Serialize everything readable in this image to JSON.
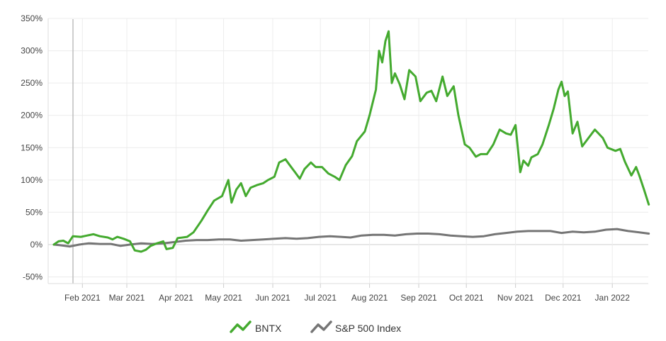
{
  "chart_data": {
    "type": "line",
    "title": "",
    "xlabel": "",
    "ylabel": "",
    "ylim": [
      -50,
      350
    ],
    "y_ticks": [
      {
        "value": -50,
        "label": "-50%"
      },
      {
        "value": 0,
        "label": "0%"
      },
      {
        "value": 50,
        "label": "50%"
      },
      {
        "value": 100,
        "label": "100%"
      },
      {
        "value": 150,
        "label": "150%"
      },
      {
        "value": 200,
        "label": "200%"
      },
      {
        "value": 250,
        "label": "250%"
      },
      {
        "value": 300,
        "label": "300%"
      },
      {
        "value": 350,
        "label": "350%"
      }
    ],
    "x_range": [
      "2021-01-14",
      "2022-01-21"
    ],
    "x_ticks": [
      {
        "date": "2021-02-01",
        "label": "Feb 2021"
      },
      {
        "date": "2021-03-01",
        "label": "Mar 2021"
      },
      {
        "date": "2021-04-01",
        "label": "Apr 2021"
      },
      {
        "date": "2021-05-01",
        "label": "May 2021"
      },
      {
        "date": "2021-06-01",
        "label": "Jun 2021"
      },
      {
        "date": "2021-07-01",
        "label": "Jul 2021"
      },
      {
        "date": "2021-08-01",
        "label": "Aug 2021"
      },
      {
        "date": "2021-09-01",
        "label": "Sep 2021"
      },
      {
        "date": "2021-10-01",
        "label": "Oct 2021"
      },
      {
        "date": "2021-11-01",
        "label": "Nov 2021"
      },
      {
        "date": "2021-12-01",
        "label": "Dec 2021"
      },
      {
        "date": "2022-01-01",
        "label": "Jan 2022"
      }
    ],
    "grid": true,
    "legend_position": "bottom-center",
    "series": [
      {
        "name": "BNTX",
        "color": "#44aa2f",
        "points": [
          [
            "2021-01-14",
            0
          ],
          [
            "2021-01-17",
            5
          ],
          [
            "2021-01-20",
            6
          ],
          [
            "2021-01-23",
            2
          ],
          [
            "2021-01-26",
            13
          ],
          [
            "2021-01-31",
            12
          ],
          [
            "2021-02-04",
            14
          ],
          [
            "2021-02-08",
            16
          ],
          [
            "2021-02-12",
            13
          ],
          [
            "2021-02-17",
            11
          ],
          [
            "2021-02-20",
            8
          ],
          [
            "2021-02-23",
            12
          ],
          [
            "2021-02-27",
            9
          ],
          [
            "2021-03-03",
            5
          ],
          [
            "2021-03-06",
            -9
          ],
          [
            "2021-03-10",
            -11
          ],
          [
            "2021-03-13",
            -8
          ],
          [
            "2021-03-16",
            -2
          ],
          [
            "2021-03-20",
            2
          ],
          [
            "2021-03-24",
            5
          ],
          [
            "2021-03-26",
            -7
          ],
          [
            "2021-03-30",
            -5
          ],
          [
            "2021-04-02",
            10
          ],
          [
            "2021-04-08",
            12
          ],
          [
            "2021-04-12",
            19
          ],
          [
            "2021-04-17",
            37
          ],
          [
            "2021-04-21",
            53
          ],
          [
            "2021-04-25",
            68
          ],
          [
            "2021-04-30",
            75
          ],
          [
            "2021-05-04",
            100
          ],
          [
            "2021-05-06",
            65
          ],
          [
            "2021-05-09",
            85
          ],
          [
            "2021-05-12",
            95
          ],
          [
            "2021-05-15",
            75
          ],
          [
            "2021-05-18",
            88
          ],
          [
            "2021-05-22",
            92
          ],
          [
            "2021-05-26",
            95
          ],
          [
            "2021-05-29",
            100
          ],
          [
            "2021-06-02",
            105
          ],
          [
            "2021-06-05",
            127
          ],
          [
            "2021-06-09",
            132
          ],
          [
            "2021-06-12",
            122
          ],
          [
            "2021-06-15",
            112
          ],
          [
            "2021-06-18",
            102
          ],
          [
            "2021-06-21",
            117
          ],
          [
            "2021-06-25",
            127
          ],
          [
            "2021-06-28",
            120
          ],
          [
            "2021-07-02",
            120
          ],
          [
            "2021-07-06",
            110
          ],
          [
            "2021-07-10",
            105
          ],
          [
            "2021-07-13",
            100
          ],
          [
            "2021-07-17",
            123
          ],
          [
            "2021-07-21",
            137
          ],
          [
            "2021-07-24",
            160
          ],
          [
            "2021-07-29",
            175
          ],
          [
            "2021-08-01",
            200
          ],
          [
            "2021-08-03",
            220
          ],
          [
            "2021-08-05",
            240
          ],
          [
            "2021-08-07",
            300
          ],
          [
            "2021-08-09",
            282
          ],
          [
            "2021-08-11",
            315
          ],
          [
            "2021-08-13",
            330
          ],
          [
            "2021-08-15",
            250
          ],
          [
            "2021-08-17",
            265
          ],
          [
            "2021-08-20",
            248
          ],
          [
            "2021-08-23",
            225
          ],
          [
            "2021-08-26",
            270
          ],
          [
            "2021-08-30",
            260
          ],
          [
            "2021-09-02",
            222
          ],
          [
            "2021-09-06",
            235
          ],
          [
            "2021-09-09",
            238
          ],
          [
            "2021-09-12",
            222
          ],
          [
            "2021-09-16",
            260
          ],
          [
            "2021-09-19",
            230
          ],
          [
            "2021-09-23",
            245
          ],
          [
            "2021-09-26",
            200
          ],
          [
            "2021-09-30",
            155
          ],
          [
            "2021-10-03",
            150
          ],
          [
            "2021-10-07",
            136
          ],
          [
            "2021-10-10",
            140
          ],
          [
            "2021-10-14",
            140
          ],
          [
            "2021-10-18",
            155
          ],
          [
            "2021-10-22",
            178
          ],
          [
            "2021-10-26",
            172
          ],
          [
            "2021-10-29",
            170
          ],
          [
            "2021-11-01",
            185
          ],
          [
            "2021-11-04",
            112
          ],
          [
            "2021-11-06",
            130
          ],
          [
            "2021-11-09",
            122
          ],
          [
            "2021-11-11",
            135
          ],
          [
            "2021-11-15",
            140
          ],
          [
            "2021-11-18",
            155
          ],
          [
            "2021-11-22",
            185
          ],
          [
            "2021-11-25",
            210
          ],
          [
            "2021-11-28",
            240
          ],
          [
            "2021-11-30",
            252
          ],
          [
            "2021-12-02",
            230
          ],
          [
            "2021-12-04",
            237
          ],
          [
            "2021-12-07",
            172
          ],
          [
            "2021-12-10",
            190
          ],
          [
            "2021-12-13",
            152
          ],
          [
            "2021-12-17",
            165
          ],
          [
            "2021-12-21",
            178
          ],
          [
            "2021-12-26",
            165
          ],
          [
            "2021-12-29",
            150
          ],
          [
            "2022-01-03",
            145
          ],
          [
            "2022-01-06",
            148
          ],
          [
            "2022-01-09",
            128
          ],
          [
            "2022-01-13",
            107
          ],
          [
            "2022-01-16",
            120
          ],
          [
            "2022-01-18",
            107
          ],
          [
            "2022-01-21",
            85
          ],
          [
            "2022-01-24",
            62
          ]
        ]
      },
      {
        "name": "S&P 500 Index",
        "color": "#757575",
        "points": [
          [
            "2021-01-14",
            0
          ],
          [
            "2021-01-18",
            -1
          ],
          [
            "2021-01-24",
            -3
          ],
          [
            "2021-01-30",
            0
          ],
          [
            "2021-02-05",
            2
          ],
          [
            "2021-02-12",
            1
          ],
          [
            "2021-02-19",
            1
          ],
          [
            "2021-02-25",
            -2
          ],
          [
            "2021-03-03",
            0
          ],
          [
            "2021-03-10",
            2
          ],
          [
            "2021-03-17",
            1
          ],
          [
            "2021-03-24",
            2
          ],
          [
            "2021-03-31",
            4
          ],
          [
            "2021-04-07",
            6
          ],
          [
            "2021-04-14",
            7
          ],
          [
            "2021-04-21",
            7
          ],
          [
            "2021-04-28",
            8
          ],
          [
            "2021-05-05",
            8
          ],
          [
            "2021-05-12",
            6
          ],
          [
            "2021-05-19",
            7
          ],
          [
            "2021-05-26",
            8
          ],
          [
            "2021-06-02",
            9
          ],
          [
            "2021-06-09",
            10
          ],
          [
            "2021-06-16",
            9
          ],
          [
            "2021-06-23",
            10
          ],
          [
            "2021-06-30",
            12
          ],
          [
            "2021-07-07",
            13
          ],
          [
            "2021-07-14",
            12
          ],
          [
            "2021-07-20",
            11
          ],
          [
            "2021-07-27",
            14
          ],
          [
            "2021-08-03",
            15
          ],
          [
            "2021-08-10",
            15
          ],
          [
            "2021-08-17",
            14
          ],
          [
            "2021-08-24",
            16
          ],
          [
            "2021-08-31",
            17
          ],
          [
            "2021-09-07",
            17
          ],
          [
            "2021-09-14",
            16
          ],
          [
            "2021-09-21",
            14
          ],
          [
            "2021-09-28",
            13
          ],
          [
            "2021-10-05",
            12
          ],
          [
            "2021-10-12",
            13
          ],
          [
            "2021-10-19",
            16
          ],
          [
            "2021-10-26",
            18
          ],
          [
            "2021-11-02",
            20
          ],
          [
            "2021-11-09",
            21
          ],
          [
            "2021-11-16",
            21
          ],
          [
            "2021-11-23",
            21
          ],
          [
            "2021-11-30",
            18
          ],
          [
            "2021-12-07",
            20
          ],
          [
            "2021-12-14",
            19
          ],
          [
            "2021-12-21",
            20
          ],
          [
            "2021-12-28",
            23
          ],
          [
            "2022-01-04",
            24
          ],
          [
            "2022-01-11",
            21
          ],
          [
            "2022-01-18",
            19
          ],
          [
            "2022-01-24",
            17
          ]
        ]
      }
    ]
  }
}
